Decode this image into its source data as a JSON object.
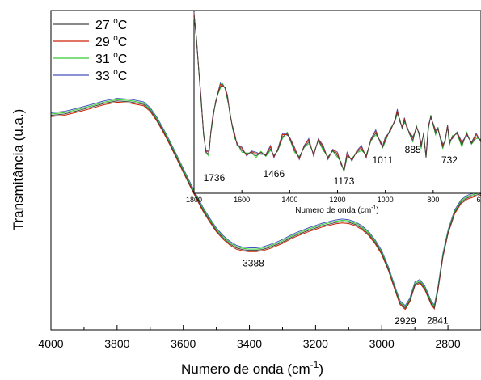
{
  "chart_data": [
    {
      "type": "line",
      "title": "",
      "xlabel": "Numero de onda (cm",
      "xlabel_sup": "-1",
      "xlabel_tail": ")",
      "ylabel": "Transmitância (u.a.)",
      "xlim": [
        4000,
        2700
      ],
      "x_reversed": true,
      "xticks": [
        "4000",
        "3800",
        "3600",
        "3400",
        "3200",
        "3000",
        "2800"
      ],
      "grid": false,
      "legend_position": "top-left",
      "series": [
        {
          "name": "27 °C",
          "name_num": "27 ",
          "name_sup": "o",
          "name_unit": "C",
          "color": "#444444",
          "x": [
            4000,
            3960,
            3920,
            3880,
            3840,
            3800,
            3760,
            3720,
            3700,
            3680,
            3660,
            3640,
            3620,
            3600,
            3580,
            3560,
            3540,
            3520,
            3500,
            3480,
            3460,
            3440,
            3420,
            3400,
            3380,
            3360,
            3340,
            3320,
            3300,
            3280,
            3260,
            3240,
            3220,
            3200,
            3180,
            3160,
            3140,
            3120,
            3100,
            3080,
            3060,
            3040,
            3020,
            3000,
            2980,
            2960,
            2945,
            2929,
            2915,
            2900,
            2885,
            2870,
            2860,
            2850,
            2841,
            2830,
            2815,
            2800,
            2780,
            2760,
            2740,
            2720,
            2700
          ],
          "y": [
            0.672,
            0.676,
            0.686,
            0.697,
            0.709,
            0.717,
            0.714,
            0.706,
            0.688,
            0.658,
            0.622,
            0.582,
            0.54,
            0.497,
            0.455,
            0.414,
            0.375,
            0.342,
            0.311,
            0.288,
            0.27,
            0.257,
            0.251,
            0.249,
            0.249,
            0.252,
            0.258,
            0.266,
            0.275,
            0.286,
            0.296,
            0.304,
            0.312,
            0.319,
            0.326,
            0.331,
            0.336,
            0.339,
            0.337,
            0.33,
            0.318,
            0.3,
            0.274,
            0.24,
            0.19,
            0.128,
            0.084,
            0.068,
            0.092,
            0.142,
            0.15,
            0.13,
            0.106,
            0.082,
            0.07,
            0.128,
            0.232,
            0.304,
            0.367,
            0.4,
            0.414,
            0.421,
            0.426
          ]
        },
        {
          "name": "29 °C",
          "name_num": "29 ",
          "name_sup": "o",
          "name_unit": "C",
          "color": "#cc2200",
          "offset": -0.004
        },
        {
          "name": "31 °C",
          "name_num": "31 ",
          "name_sup": "o",
          "name_unit": "C",
          "color": "#33cc33",
          "offset": 0.004
        },
        {
          "name": "33 °C",
          "name_num": "33 ",
          "name_sup": "o",
          "name_unit": "C",
          "color": "#4455bb",
          "offset": 0.008
        }
      ],
      "annotations": [
        {
          "text": "3388",
          "x": 3388,
          "y": 0.249
        },
        {
          "text": "2929",
          "x": 2929,
          "y": 0.068
        },
        {
          "text": "2841",
          "x": 2841,
          "y": 0.07
        }
      ]
    },
    {
      "type": "line",
      "title": "",
      "xlabel": "Numero de onda (cm",
      "xlabel_sup": "-1",
      "xlabel_tail": ")",
      "xlim": [
        1800,
        600
      ],
      "x_reversed": true,
      "xticks": [
        "1800",
        "1600",
        "1400",
        "1200",
        "1000",
        "800",
        "6"
      ],
      "grid": false,
      "x": [
        1800,
        1790,
        1780,
        1770,
        1760,
        1750,
        1740,
        1736,
        1730,
        1720,
        1710,
        1700,
        1690,
        1680,
        1670,
        1660,
        1650,
        1640,
        1630,
        1620,
        1610,
        1600,
        1580,
        1560,
        1540,
        1520,
        1500,
        1480,
        1466,
        1450,
        1430,
        1410,
        1400,
        1380,
        1360,
        1340,
        1320,
        1300,
        1280,
        1260,
        1240,
        1220,
        1200,
        1185,
        1173,
        1160,
        1140,
        1120,
        1100,
        1080,
        1060,
        1040,
        1020,
        1011,
        1000,
        980,
        960,
        950,
        940,
        930,
        920,
        910,
        900,
        885,
        870,
        860,
        850,
        840,
        830,
        820,
        810,
        800,
        790,
        780,
        770,
        760,
        750,
        740,
        732,
        720,
        700,
        680,
        660,
        640,
        620,
        600
      ],
      "values": [
        0.98,
        0.85,
        0.66,
        0.48,
        0.3,
        0.19,
        0.18,
        0.21,
        0.3,
        0.4,
        0.48,
        0.53,
        0.57,
        0.58,
        0.56,
        0.5,
        0.42,
        0.34,
        0.28,
        0.24,
        0.22,
        0.2,
        0.18,
        0.19,
        0.17,
        0.19,
        0.17,
        0.21,
        0.17,
        0.2,
        0.28,
        0.3,
        0.27,
        0.2,
        0.16,
        0.22,
        0.25,
        0.18,
        0.26,
        0.21,
        0.16,
        0.2,
        0.17,
        0.13,
        0.08,
        0.17,
        0.15,
        0.19,
        0.21,
        0.17,
        0.26,
        0.3,
        0.25,
        0.22,
        0.26,
        0.32,
        0.37,
        0.42,
        0.38,
        0.33,
        0.37,
        0.34,
        0.3,
        0.26,
        0.34,
        0.3,
        0.22,
        0.3,
        0.16,
        0.33,
        0.4,
        0.35,
        0.3,
        0.33,
        0.27,
        0.22,
        0.26,
        0.34,
        0.24,
        0.28,
        0.3,
        0.23,
        0.3,
        0.24,
        0.28,
        0.26
      ],
      "annotations": [
        {
          "text": "1736",
          "x": 1736
        },
        {
          "text": "1466",
          "x": 1466
        },
        {
          "text": "1173",
          "x": 1173
        },
        {
          "text": "1011",
          "x": 1011
        },
        {
          "text": "885",
          "x": 885
        },
        {
          "text": "732",
          "x": 732
        }
      ]
    }
  ]
}
